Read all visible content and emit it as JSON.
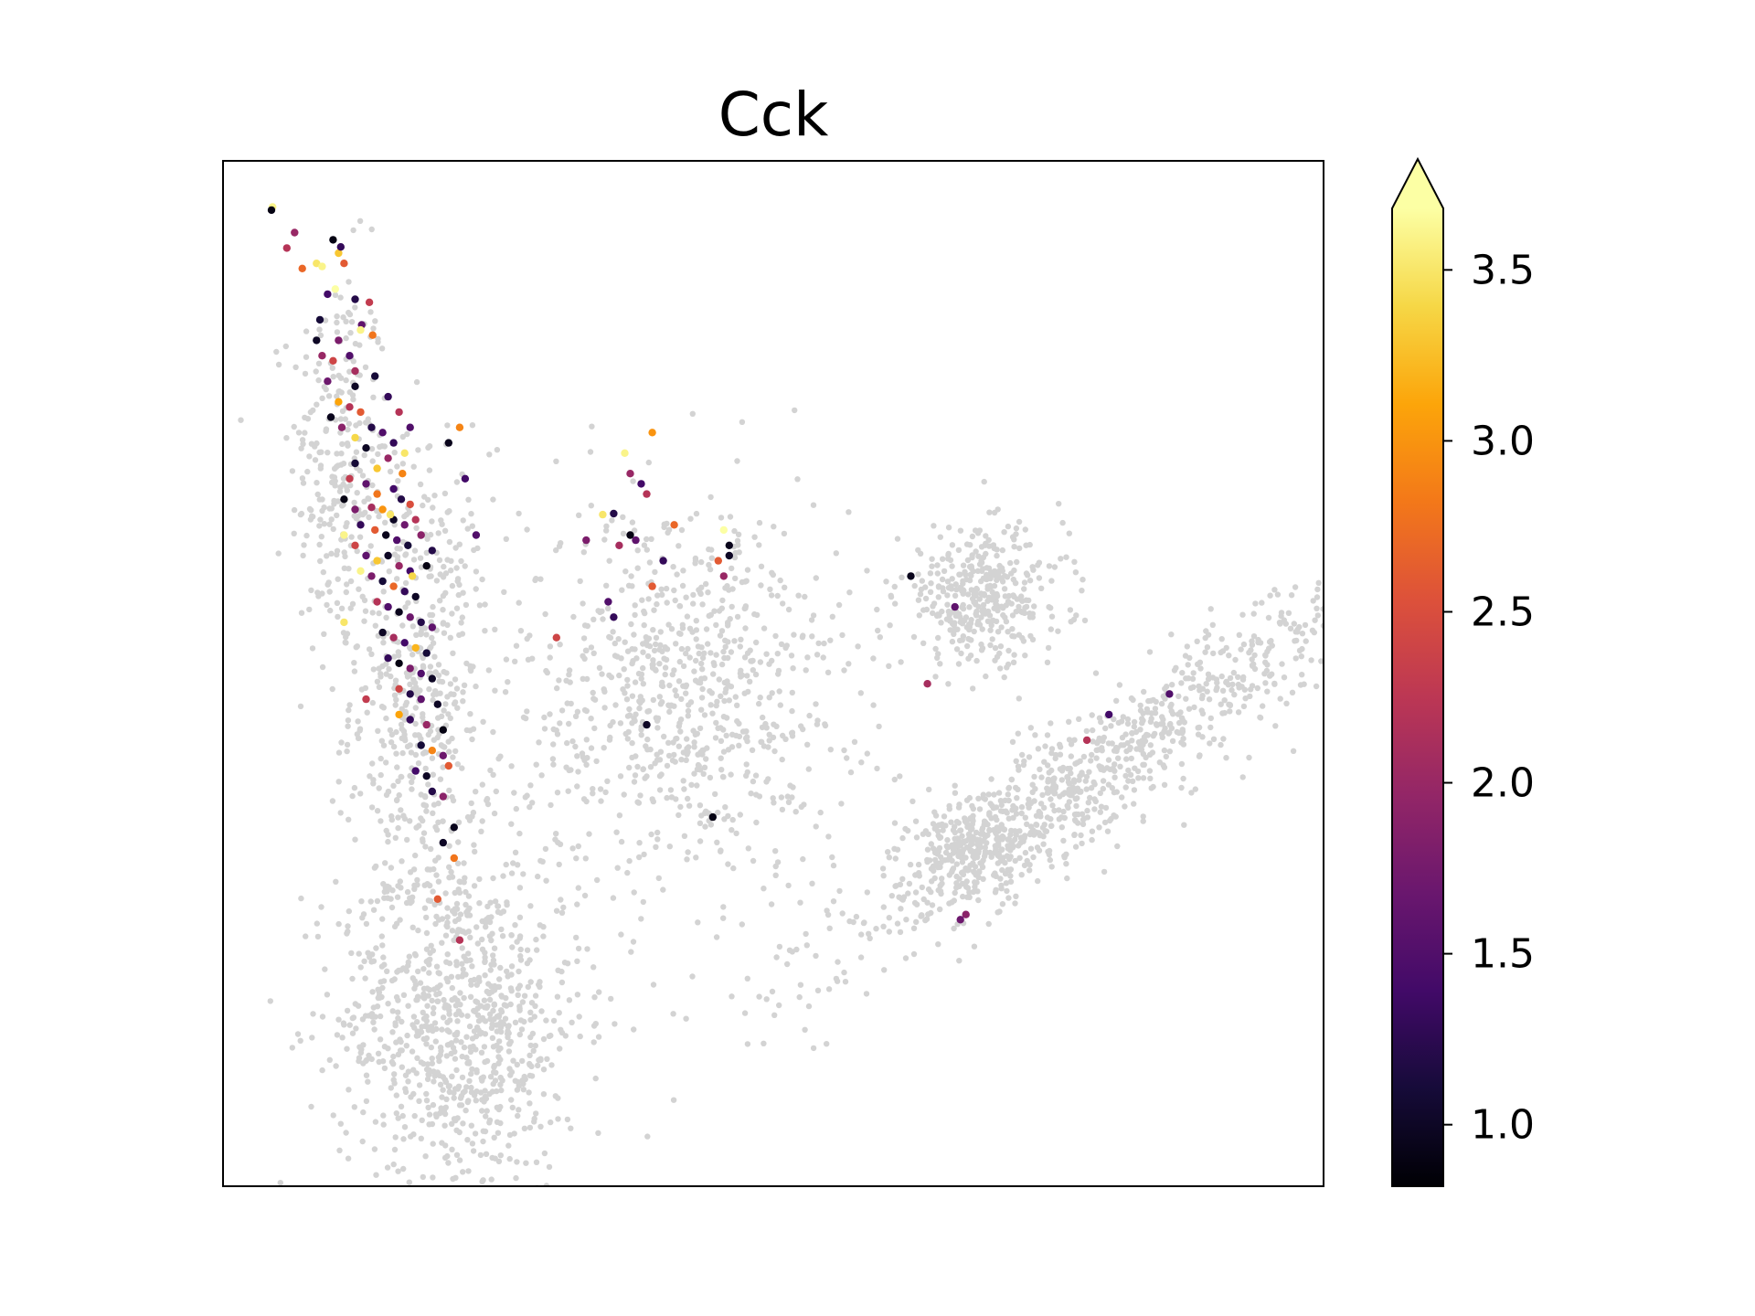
{
  "chart_data": {
    "type": "scatter",
    "title": "Cck",
    "xlabel": "",
    "ylabel": "",
    "x_axis": "hidden",
    "y_axis": "hidden",
    "grid": false,
    "background_color": "#d3d3d3",
    "colormap": "inferno",
    "colorbar": {
      "range": [
        0.82,
        3.68
      ],
      "extend": "max",
      "ticks": [
        "1.0",
        "1.5",
        "2.0",
        "2.5",
        "3.0",
        "3.5"
      ],
      "tick_values": [
        1.0,
        1.5,
        2.0,
        2.5,
        3.0,
        3.5
      ]
    },
    "xlim": [
      0,
      100
    ],
    "ylim": [
      0,
      100
    ],
    "background_regions": [
      {
        "name": "left-arm-top",
        "center": [
          10.5,
          70
        ],
        "spread": [
          2.2,
          10
        ],
        "n": 260
      },
      {
        "name": "left-arm-mid",
        "center": [
          18,
          48
        ],
        "spread": [
          3.2,
          12
        ],
        "n": 520
      },
      {
        "name": "left-arm-base",
        "center": [
          21.5,
          16
        ],
        "spread": [
          5.5,
          8.5
        ],
        "n": 900
      },
      {
        "name": "middle-cluster",
        "center": [
          42,
          48
        ],
        "spread": [
          7.5,
          9.5
        ],
        "n": 820
      },
      {
        "name": "right-upper-blob",
        "center": [
          69,
          57.5
        ],
        "spread": [
          3.8,
          3.2
        ],
        "n": 380
      },
      {
        "name": "right-band",
        "center": [
          79.5,
          40.5
        ],
        "spread": [
          15,
          2.6
        ],
        "n": 860,
        "angle_deg": 37
      },
      {
        "name": "right-band-tail",
        "center": [
          68.5,
          33
        ],
        "spread": [
          3.2,
          2.2
        ],
        "n": 240
      }
    ],
    "points": [
      [
        4.5,
        95.5,
        3.6
      ],
      [
        4.4,
        95.2,
        0.9
      ],
      [
        5.8,
        91.5,
        2.2
      ],
      [
        6.5,
        93,
        2.0
      ],
      [
        7.2,
        89.5,
        2.7
      ],
      [
        8.5,
        90.0,
        3.5
      ],
      [
        9.0,
        89.7,
        3.6
      ],
      [
        10.5,
        91.0,
        3.3
      ],
      [
        11.0,
        90.0,
        2.6
      ],
      [
        10.7,
        91.6,
        1.3
      ],
      [
        10.0,
        92.3,
        0.9
      ],
      [
        9.5,
        87.0,
        1.4
      ],
      [
        8.8,
        84.5,
        1.1
      ],
      [
        12.0,
        86.5,
        1.2
      ],
      [
        13.3,
        86.2,
        2.3
      ],
      [
        12.6,
        84.0,
        1.6
      ],
      [
        13.6,
        83.0,
        2.8
      ],
      [
        10.5,
        82.5,
        1.8
      ],
      [
        9.0,
        81.0,
        2.0
      ],
      [
        8.5,
        82.5,
        1.0
      ],
      [
        10.0,
        80.5,
        2.4
      ],
      [
        11.5,
        81.0,
        1.5
      ],
      [
        12.0,
        79.5,
        2.1
      ],
      [
        9.5,
        78.5,
        1.7
      ],
      [
        10.5,
        76.5,
        3.1
      ],
      [
        11.5,
        76.0,
        2.2
      ],
      [
        9.8,
        75.0,
        0.95
      ],
      [
        10.8,
        74.0,
        1.9
      ],
      [
        12.5,
        75.5,
        2.6
      ],
      [
        13.5,
        74.0,
        1.2
      ],
      [
        12.0,
        73.0,
        3.4
      ],
      [
        13.0,
        72.0,
        1.0
      ],
      [
        14.5,
        73.5,
        1.5
      ],
      [
        15.5,
        72.5,
        1.3
      ],
      [
        16.5,
        71.5,
        3.5
      ],
      [
        15.0,
        71.0,
        2.0
      ],
      [
        12.0,
        70.5,
        1.1
      ],
      [
        11.5,
        69.0,
        2.3
      ],
      [
        13.0,
        68.5,
        1.6
      ],
      [
        14.0,
        67.5,
        2.8
      ],
      [
        15.5,
        68.0,
        1.4
      ],
      [
        16.2,
        67.0,
        1.2
      ],
      [
        17.0,
        66.5,
        2.5
      ],
      [
        11.0,
        67.0,
        0.9
      ],
      [
        12.0,
        66.0,
        1.8
      ],
      [
        13.5,
        66.2,
        2.1
      ],
      [
        14.5,
        66.0,
        3.0
      ],
      [
        15.5,
        65.0,
        1.0
      ],
      [
        16.5,
        64.5,
        1.7
      ],
      [
        17.5,
        65.0,
        2.2
      ],
      [
        12.5,
        64.5,
        1.3
      ],
      [
        13.8,
        64.0,
        2.6
      ],
      [
        14.8,
        63.5,
        0.95
      ],
      [
        15.8,
        63.0,
        1.5
      ],
      [
        16.8,
        62.5,
        1.1
      ],
      [
        18.0,
        63.5,
        1.9
      ],
      [
        19.0,
        62.0,
        1.2
      ],
      [
        12.0,
        62.5,
        2.4
      ],
      [
        13.0,
        61.5,
        1.6
      ],
      [
        14.0,
        61.0,
        3.3
      ],
      [
        15.0,
        61.5,
        1.0
      ],
      [
        16.0,
        60.5,
        2.0
      ],
      [
        17.0,
        60.0,
        1.4
      ],
      [
        18.5,
        60.5,
        0.9
      ],
      [
        13.5,
        59.5,
        1.8
      ],
      [
        14.5,
        59.0,
        1.1
      ],
      [
        15.5,
        58.5,
        2.7
      ],
      [
        16.5,
        58.0,
        1.3
      ],
      [
        17.5,
        57.5,
        1.0
      ],
      [
        14.0,
        57.0,
        2.2
      ],
      [
        15.0,
        56.5,
        1.5
      ],
      [
        16.0,
        56.0,
        0.95
      ],
      [
        17.0,
        55.5,
        1.7
      ],
      [
        18.0,
        55.0,
        1.2
      ],
      [
        19.0,
        54.5,
        1.6
      ],
      [
        14.5,
        54.0,
        1.0
      ],
      [
        15.5,
        53.5,
        2.1
      ],
      [
        16.5,
        53.0,
        1.4
      ],
      [
        17.5,
        52.5,
        3.2
      ],
      [
        18.5,
        52.0,
        1.1
      ],
      [
        15.0,
        51.5,
        1.3
      ],
      [
        16.0,
        51.0,
        0.9
      ],
      [
        17.0,
        50.5,
        1.8
      ],
      [
        18.0,
        50.0,
        1.5
      ],
      [
        19.0,
        49.5,
        1.0
      ],
      [
        16.0,
        48.5,
        2.4
      ],
      [
        17.0,
        48.0,
        1.2
      ],
      [
        18.0,
        47.5,
        1.6
      ],
      [
        19.5,
        47.0,
        1.0
      ],
      [
        17.0,
        45.5,
        1.3
      ],
      [
        18.5,
        45.0,
        2.0
      ],
      [
        20.0,
        44.5,
        0.9
      ],
      [
        18.0,
        43.0,
        1.1
      ],
      [
        19.0,
        42.5,
        2.9
      ],
      [
        20.0,
        42.0,
        1.7
      ],
      [
        17.5,
        40.5,
        1.4
      ],
      [
        18.5,
        40.0,
        1.0
      ],
      [
        20.5,
        41.0,
        2.6
      ],
      [
        19.0,
        38.5,
        1.2
      ],
      [
        20.0,
        38.0,
        1.9
      ],
      [
        12.0,
        78.0,
        1.0
      ],
      [
        13.8,
        79.0,
        1.1
      ],
      [
        15.0,
        77.0,
        1.3
      ],
      [
        16.0,
        75.5,
        2.2
      ],
      [
        17.0,
        74.0,
        1.5
      ],
      [
        21.5,
        74.0,
        2.9
      ],
      [
        20.5,
        72.5,
        0.95
      ],
      [
        22.0,
        69.0,
        1.4
      ],
      [
        12.5,
        60.0,
        3.6
      ],
      [
        11.0,
        55.0,
        3.5
      ],
      [
        13.0,
        47.5,
        2.3
      ],
      [
        16.0,
        46.0,
        3.1
      ],
      [
        21.0,
        35.0,
        0.95
      ],
      [
        20.0,
        33.5,
        1.0
      ],
      [
        19.5,
        28.0,
        2.6
      ],
      [
        21.0,
        32.0,
        2.8
      ],
      [
        21.5,
        24.0,
        2.2
      ],
      [
        23.0,
        63.5,
        1.5
      ],
      [
        12.5,
        83.5,
        3.6
      ],
      [
        11.0,
        63.5,
        3.6
      ],
      [
        15.2,
        65.5,
        3.5
      ],
      [
        17.2,
        59.5,
        3.4
      ],
      [
        14.0,
        70.0,
        3.3
      ],
      [
        16.3,
        69.5,
        2.9
      ],
      [
        10.2,
        87.5,
        3.7
      ],
      [
        30.3,
        53.5,
        2.4
      ],
      [
        34.5,
        65.5,
        3.5
      ],
      [
        35.5,
        65.6,
        1.2
      ],
      [
        36.5,
        71.5,
        3.6
      ],
      [
        37.0,
        69.5,
        2.0
      ],
      [
        38.0,
        68.5,
        1.4
      ],
      [
        39.0,
        73.5,
        3.0
      ],
      [
        38.5,
        67.5,
        2.2
      ],
      [
        33.0,
        63.0,
        1.8
      ],
      [
        36.0,
        62.5,
        2.1
      ],
      [
        37.0,
        63.5,
        0.9
      ],
      [
        37.5,
        63.0,
        1.6
      ],
      [
        40.0,
        61.0,
        1.3
      ],
      [
        41.0,
        64.5,
        2.7
      ],
      [
        45.5,
        64.0,
        3.7
      ],
      [
        46.0,
        62.5,
        0.95
      ],
      [
        46.0,
        61.5,
        1.0
      ],
      [
        45.0,
        61.0,
        2.6
      ],
      [
        39.0,
        58.5,
        2.6
      ],
      [
        35.0,
        57.0,
        1.5
      ],
      [
        35.5,
        55.5,
        1.3
      ],
      [
        45.5,
        59.5,
        2.0
      ],
      [
        38.5,
        45.0,
        1.0
      ],
      [
        44.5,
        36.0,
        0.9
      ],
      [
        62.5,
        59.5,
        0.95
      ],
      [
        66.5,
        56.5,
        1.6
      ],
      [
        64.0,
        49.0,
        2.1
      ],
      [
        80.5,
        46.0,
        1.4
      ],
      [
        78.5,
        43.5,
        2.2
      ],
      [
        86.0,
        48.0,
        1.5
      ],
      [
        67.5,
        26.5,
        1.9
      ],
      [
        67.0,
        26.0,
        1.7
      ]
    ]
  }
}
